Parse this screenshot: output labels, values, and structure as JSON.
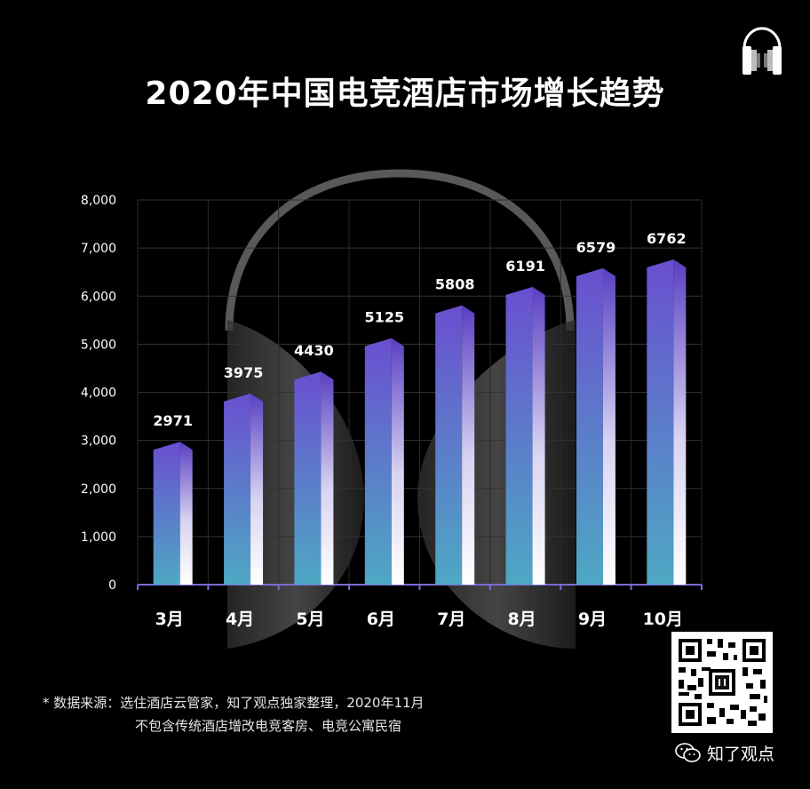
{
  "chart_data": {
    "type": "bar",
    "title": "2020年中国电竞酒店市场增长趋势",
    "categories": [
      "3月",
      "4月",
      "5月",
      "6月",
      "7月",
      "8月",
      "9月",
      "10月"
    ],
    "values": [
      2971,
      3975,
      4430,
      5125,
      5808,
      6191,
      6579,
      6762
    ],
    "data_labels": [
      "2971",
      "3975",
      "4430",
      "5125",
      "5808",
      "6191",
      "6579",
      "6762"
    ],
    "yticks": [
      0,
      1000,
      2000,
      3000,
      4000,
      5000,
      6000,
      7000,
      8000
    ],
    "ytick_labels": [
      "0",
      "1,000",
      "2,000",
      "3,000",
      "4,000",
      "5,000",
      "6,000",
      "7,000",
      "8,000"
    ],
    "ylim": [
      0,
      8000
    ],
    "grid": true,
    "legend": "none"
  },
  "footer": {
    "source_line1": "* 数据来源：选住酒店云管家，知了观点独家整理，2020年11月",
    "source_line2": "不包含传统酒店增改电竞客房、电竞公寓民宿",
    "brand": "知了观点"
  },
  "icons": {
    "logo": "headphones-logo-icon",
    "qr": "qr-code-icon",
    "wechat": "wechat-icon"
  },
  "colors": {
    "background": "#000000",
    "bar_top": "#6a4fd0",
    "bar_bottom": "#4ea8c4",
    "bar_side_light": "#ffffff",
    "axis": "#7a6ad8",
    "grid": "#333333"
  }
}
